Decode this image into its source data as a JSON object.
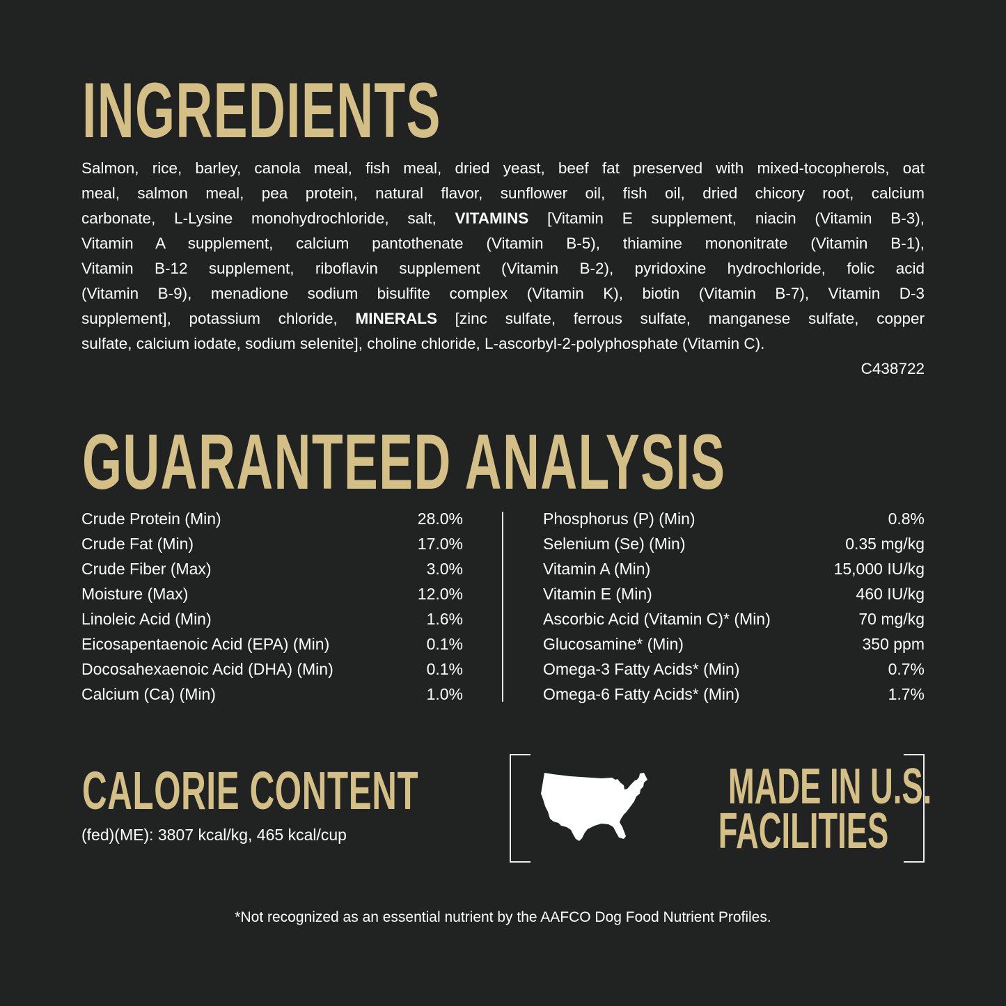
{
  "ingredients": {
    "title": "INGREDIENTS",
    "lines": [
      "Salmon, rice, barley, canola meal, fish meal, dried yeast, beef fat preserved with mixed-tocopherols, oat",
      "meal, salmon meal, pea protein, natural flavor, sunflower oil, fish oil, dried chicory root, calcium",
      [
        "carbonate, L-Lysine monohydrochloride, salt, ",
        "VITAMINS",
        " [Vitamin E supplement, niacin (Vitamin B-3),"
      ],
      "Vitamin A supplement, calcium pantothenate (Vitamin B-5), thiamine mononitrate (Vitamin B-1),",
      "Vitamin B-12 supplement, riboflavin supplement (Vitamin B-2), pyridoxine hydrochloride, folic acid",
      "(Vitamin B-9), menadione sodium bisulfite complex (Vitamin K), biotin (Vitamin B-7), Vitamin D-3",
      [
        "supplement], potassium chloride, ",
        "MINERALS",
        " [zinc sulfate, ferrous sulfate, manganese sulfate, copper"
      ],
      "sulfate, calcium iodate, sodium selenite], choline chloride, L-ascorbyl-2-polyphosphate (Vitamin C)."
    ],
    "code": "C438722"
  },
  "analysis": {
    "title": "GUARANTEED ANALYSIS",
    "left": [
      {
        "label": "Crude Protein (Min)",
        "value": "28.0%"
      },
      {
        "label": "Crude Fat (Min)",
        "value": "17.0%"
      },
      {
        "label": "Crude Fiber (Max)",
        "value": "3.0%"
      },
      {
        "label": "Moisture (Max)",
        "value": "12.0%"
      },
      {
        "label": "Linoleic Acid (Min)",
        "value": "1.6%"
      },
      {
        "label": "Eicosapentaenoic Acid (EPA) (Min)",
        "value": "0.1%"
      },
      {
        "label": "Docosahexaenoic Acid (DHA) (Min)",
        "value": "0.1%"
      },
      {
        "label": "Calcium (Ca) (Min)",
        "value": "1.0%"
      }
    ],
    "right": [
      {
        "label": "Phosphorus (P) (Min)",
        "value": "0.8%"
      },
      {
        "label": "Selenium (Se) (Min)",
        "value": "0.35 mg/kg"
      },
      {
        "label": "Vitamin A (Min)",
        "value": "15,000 IU/kg"
      },
      {
        "label": "Vitamin E (Min)",
        "value": "460 IU/kg"
      },
      {
        "label": "Ascorbic Acid (Vitamin C)* (Min)",
        "value": "70 mg/kg"
      },
      {
        "label": "Glucosamine* (Min)",
        "value": "350 ppm"
      },
      {
        "label": "Omega-3 Fatty Acids* (Min)",
        "value": "0.7%"
      },
      {
        "label": "Omega-6 Fatty Acids* (Min)",
        "value": "1.7%"
      }
    ]
  },
  "calorie": {
    "title": "CALORIE CONTENT",
    "text": "(fed)(ME): 3807 kcal/kg, 465 kcal/cup"
  },
  "made_in": {
    "line1": "MADE IN U.S.",
    "line2": "FACILITIES",
    "icon": "us-map-icon"
  },
  "footnote": "*Not recognized as an essential nutrient by the AAFCO Dog Food Nutrient Profiles.",
  "colors": {
    "background": "#212322",
    "accent": "#d4bf86",
    "text": "#ffffff"
  }
}
